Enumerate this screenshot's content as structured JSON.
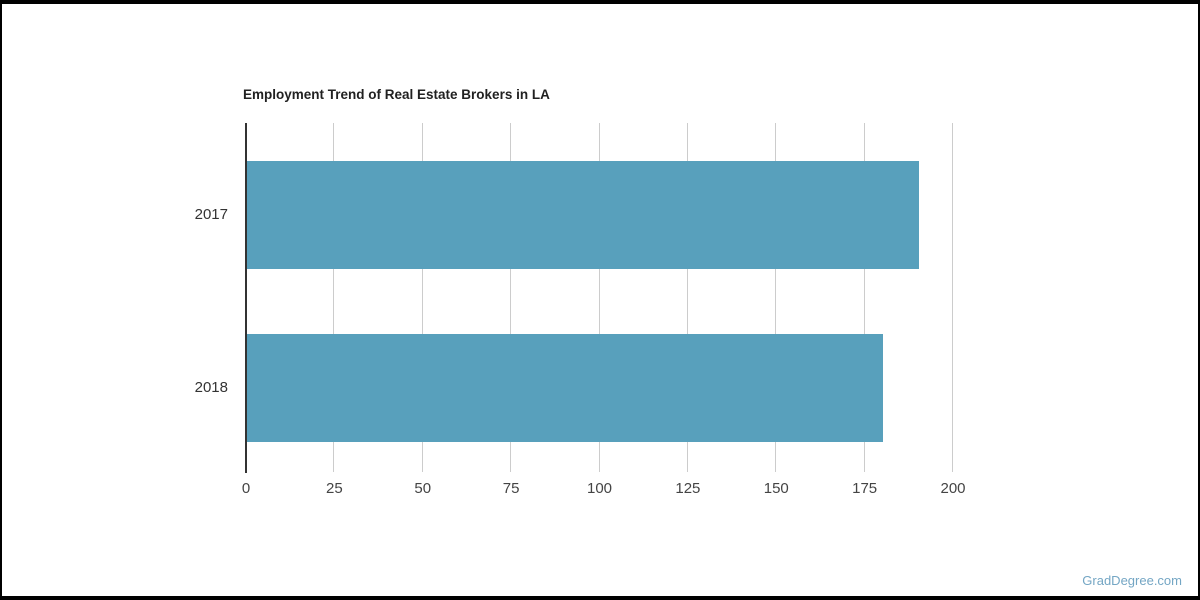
{
  "watermark": {
    "label": "GradDegree.com",
    "color": "#74a6c4"
  },
  "chart_data": {
    "type": "bar",
    "orientation": "horizontal",
    "title": "Employment Trend of Real Estate Brokers in LA",
    "categories": [
      "2017",
      "2018"
    ],
    "values": [
      190,
      180
    ],
    "xlabel": "",
    "ylabel": "",
    "xlim": [
      0,
      200
    ],
    "xticks": [
      0,
      25,
      50,
      75,
      100,
      125,
      150,
      175,
      200
    ],
    "grid": true,
    "legend": "none",
    "colors": {
      "bar": "#58a0bc",
      "gridline": "#cccccc",
      "axis_line": "#333333",
      "tick_label": "#444444",
      "category_label": "#333333",
      "title": "#212121"
    }
  }
}
